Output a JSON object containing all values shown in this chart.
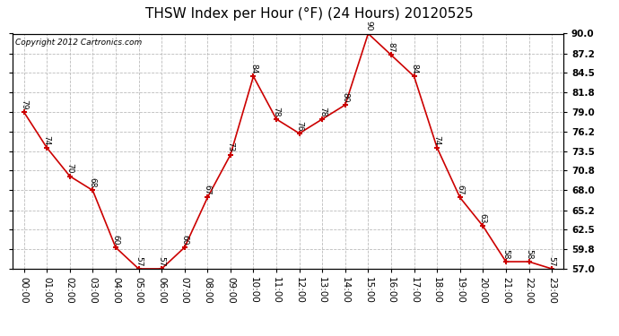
{
  "title": "THSW Index per Hour (°F) (24 Hours) 20120525",
  "copyright": "Copyright 2012 Cartronics.com",
  "hours": [
    "00:00",
    "01:00",
    "02:00",
    "03:00",
    "04:00",
    "05:00",
    "06:00",
    "07:00",
    "08:00",
    "09:00",
    "10:00",
    "11:00",
    "12:00",
    "13:00",
    "14:00",
    "15:00",
    "16:00",
    "17:00",
    "18:00",
    "19:00",
    "20:00",
    "21:00",
    "22:00",
    "23:00"
  ],
  "values": [
    79,
    74,
    70,
    68,
    60,
    57,
    57,
    60,
    67,
    73,
    84,
    78,
    76,
    78,
    80,
    90,
    87,
    84,
    74,
    67,
    63,
    58,
    58,
    57
  ],
  "ylim_min": 57.0,
  "ylim_max": 90.0,
  "yticks": [
    57.0,
    59.8,
    62.5,
    65.2,
    68.0,
    70.8,
    73.5,
    76.2,
    79.0,
    81.8,
    84.5,
    87.2,
    90.0
  ],
  "line_color": "#cc0000",
  "marker_color": "#cc0000",
  "bg_color": "#ffffff",
  "plot_bg_color": "#ffffff",
  "grid_color": "#bbbbbb",
  "title_fontsize": 11,
  "label_fontsize": 6.5,
  "tick_fontsize": 7.5,
  "copyright_fontsize": 6.5
}
